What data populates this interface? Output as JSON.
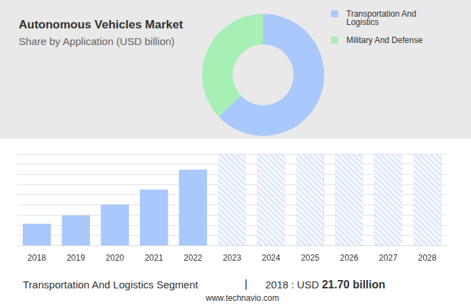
{
  "chart_data": [
    {
      "type": "doughnut",
      "title": "Autonomous Vehicles Market",
      "subtitle": "Share by Application (USD billion)",
      "categories": [
        "Transportation And Logistics",
        "Military And Defense"
      ],
      "values": [
        63,
        37
      ],
      "colors": [
        "#a9c8fb",
        "#a6efb5"
      ],
      "legend": "right"
    },
    {
      "type": "bar",
      "categories": [
        "2018",
        "2019",
        "2020",
        "2021",
        "2022",
        "2023",
        "2024",
        "2025",
        "2026",
        "2027",
        "2028"
      ],
      "values": [
        21.7,
        29.7,
        40.5,
        55,
        74.5,
        null,
        null,
        null,
        null,
        null,
        null
      ],
      "color": "#a9c8fb",
      "ylim": [
        0,
        90
      ],
      "yticks": [
        0,
        10,
        20,
        30,
        40,
        50,
        60,
        70,
        80,
        90
      ],
      "grid": true,
      "tick_labels": "x"
    }
  ],
  "footer": {
    "label": "Transportation And Logistics Segment",
    "separator": "|",
    "year_text": "2018 : USD",
    "value_text": "21.70 billion"
  },
  "source": "www.technavio.com"
}
